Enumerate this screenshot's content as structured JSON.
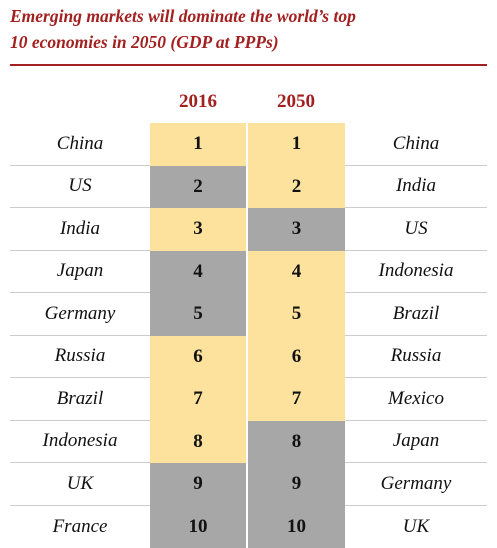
{
  "header": {
    "title_lines": [
      "Emerging markets will dominate the world’s top",
      "10 economies in 2050 (GDP at PPPs)"
    ]
  },
  "table": {
    "columns": [
      "2016",
      "2050"
    ],
    "rows": [
      {
        "country_2016": "China",
        "rank_2016": 1,
        "fill_2016": "#fde29e",
        "rank_2050": 1,
        "fill_2050": "#fde29e",
        "country_2050": "China"
      },
      {
        "country_2016": "US",
        "rank_2016": 2,
        "fill_2016": "#a7a7a7",
        "rank_2050": 2,
        "fill_2050": "#fde29e",
        "country_2050": "India"
      },
      {
        "country_2016": "India",
        "rank_2016": 3,
        "fill_2016": "#fde29e",
        "rank_2050": 3,
        "fill_2050": "#a7a7a7",
        "country_2050": "US"
      },
      {
        "country_2016": "Japan",
        "rank_2016": 4,
        "fill_2016": "#a7a7a7",
        "rank_2050": 4,
        "fill_2050": "#fde29e",
        "country_2050": "Indonesia"
      },
      {
        "country_2016": "Germany",
        "rank_2016": 5,
        "fill_2016": "#a7a7a7",
        "rank_2050": 5,
        "fill_2050": "#fde29e",
        "country_2050": "Brazil"
      },
      {
        "country_2016": "Russia",
        "rank_2016": 6,
        "fill_2016": "#fde29e",
        "rank_2050": 6,
        "fill_2050": "#fde29e",
        "country_2050": "Russia"
      },
      {
        "country_2016": "Brazil",
        "rank_2016": 7,
        "fill_2016": "#fde29e",
        "rank_2050": 7,
        "fill_2050": "#fde29e",
        "country_2050": "Mexico"
      },
      {
        "country_2016": "Indonesia",
        "rank_2016": 8,
        "fill_2016": "#fde29e",
        "rank_2050": 8,
        "fill_2050": "#a7a7a7",
        "country_2050": "Japan"
      },
      {
        "country_2016": "UK",
        "rank_2016": 9,
        "fill_2016": "#a7a7a7",
        "rank_2050": 9,
        "fill_2050": "#a7a7a7",
        "country_2050": "Germany"
      },
      {
        "country_2016": "France",
        "rank_2016": 10,
        "fill_2016": "#a7a7a7",
        "rank_2050": 10,
        "fill_2050": "#a7a7a7",
        "country_2050": "UK"
      }
    ]
  }
}
